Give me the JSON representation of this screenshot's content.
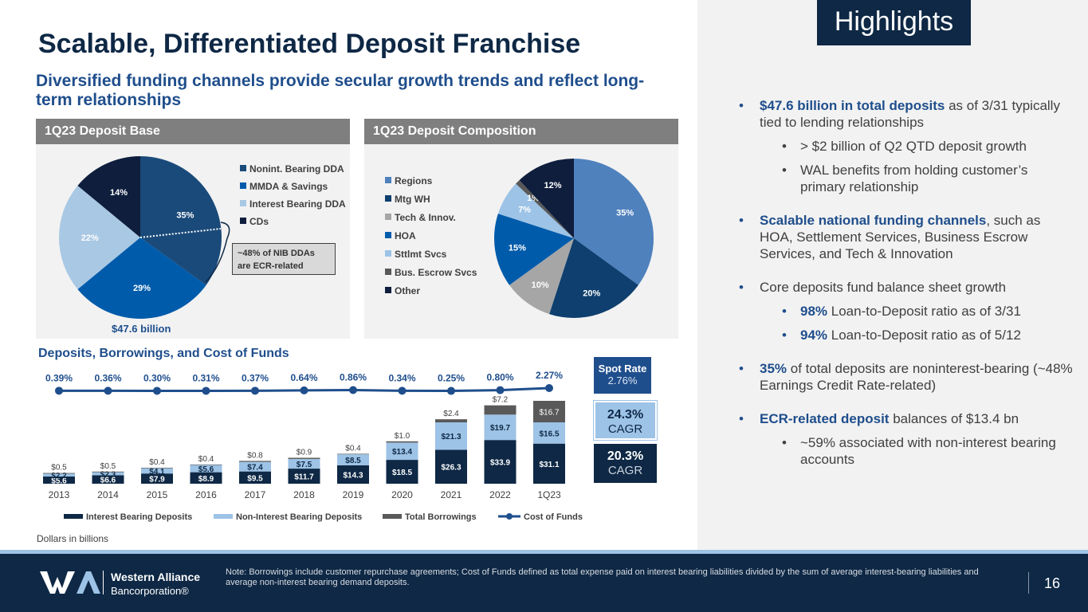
{
  "header": {
    "title": "Scalable, Differentiated Deposit Franchise",
    "subtitle": "Diversified funding channels provide secular growth trends and reflect long-term relationships",
    "highlights_label": "Highlights"
  },
  "colors": {
    "navy": "#0e2845",
    "blue": "#1f4e8c",
    "mid_blue": "#005bab",
    "light_blue": "#9dc3e6",
    "steel_blue": "#4f81bd",
    "gray": "#a6a6a6",
    "dark_gray": "#595959"
  },
  "chart_data": [
    {
      "type": "pie",
      "title": "1Q23 Deposit Base",
      "slices": [
        {
          "label": "Nonint. Bearing DDA",
          "value": 35,
          "display": "35%",
          "color": "#1a4a7a"
        },
        {
          "label": "MMDA & Savings",
          "value": 29,
          "display": "29%",
          "color": "#005bab"
        },
        {
          "label": "Interest Bearing DDA",
          "value": 22,
          "display": "22%",
          "color": "#a9c8e4"
        },
        {
          "label": "CDs",
          "value": 14,
          "display": "14%",
          "color": "#0e1e3c"
        }
      ],
      "callout": "~48% of NIB DDAs are ECR-related",
      "total_label": "$47.6 billion",
      "legend_position": "right"
    },
    {
      "type": "pie",
      "title": "1Q23 Deposit Composition",
      "slices": [
        {
          "label": "Regions",
          "value": 35,
          "display": "35%",
          "color": "#4f81bd"
        },
        {
          "label": "Mtg WH",
          "value": 20,
          "display": "20%",
          "color": "#0e3f6e"
        },
        {
          "label": "Tech & Innov.",
          "value": 10,
          "display": "10%",
          "color": "#a6a6a6"
        },
        {
          "label": "HOA",
          "value": 15,
          "display": "15%",
          "color": "#005bab"
        },
        {
          "label": "Sttlmt Svcs",
          "value": 7,
          "display": "7%",
          "color": "#9dc3e6"
        },
        {
          "label": "Bus. Escrow Svcs",
          "value": 1,
          "display": "1%",
          "color": "#595959"
        },
        {
          "label": "Other",
          "value": 12,
          "display": "12%",
          "color": "#0e1e3c"
        }
      ],
      "legend_position": "left"
    },
    {
      "type": "bar",
      "title": "Deposits, Borrowings, and Cost of Funds",
      "stacked": true,
      "categories": [
        "2013",
        "2014",
        "2015",
        "2016",
        "2017",
        "2018",
        "2019",
        "2020",
        "2021",
        "2022",
        "1Q23"
      ],
      "series": [
        {
          "name": "Interest Bearing Deposits",
          "color": "#0e2845",
          "values": [
            5.6,
            6.6,
            7.9,
            8.9,
            9.5,
            11.7,
            14.3,
            18.5,
            26.3,
            33.9,
            31.1
          ],
          "labels": [
            "$5.6",
            "$6.6",
            "$7.9",
            "$8.9",
            "$9.5",
            "$11.7",
            "$14.3",
            "$18.5",
            "$26.3",
            "$33.9",
            "$31.1"
          ]
        },
        {
          "name": "Non-Interest Bearing Deposits",
          "color": "#9dc3e6",
          "values": [
            2.2,
            2.3,
            4.1,
            5.6,
            7.4,
            7.5,
            8.5,
            13.4,
            21.3,
            19.7,
            16.5
          ],
          "labels": [
            "$2.2",
            "$2.3",
            "$4.1",
            "$5.6",
            "$7.4",
            "$7.5",
            "$8.5",
            "$13.4",
            "$21.3",
            "$19.7",
            "$16.5"
          ]
        },
        {
          "name": "Total Borrowings",
          "color": "#595959",
          "values": [
            0.5,
            0.5,
            0.4,
            0.4,
            0.8,
            0.9,
            0.4,
            1.0,
            2.4,
            7.2,
            16.7
          ],
          "labels": [
            "$0.5",
            "$0.5",
            "$0.4",
            "$0.4",
            "$0.8",
            "$0.9",
            "$0.4",
            "$1.0",
            "$2.4",
            "$7.2",
            "$16.7"
          ]
        }
      ],
      "line_series": {
        "name": "Cost of Funds",
        "color": "#1f4e8c",
        "values": [
          0.39,
          0.36,
          0.3,
          0.31,
          0.37,
          0.64,
          0.86,
          0.34,
          0.25,
          0.8,
          2.27
        ],
        "labels": [
          "0.39%",
          "0.36%",
          "0.30%",
          "0.31%",
          "0.37%",
          "0.64%",
          "0.86%",
          "0.34%",
          "0.25%",
          "0.80%",
          "2.27%"
        ]
      },
      "ylabel": "",
      "xlabel": "",
      "legend_position": "bottom",
      "grid": false
    }
  ],
  "side_boxes": {
    "spot_rate_title": "Spot Rate",
    "spot_rate_value": "2.76%",
    "cagr_top_value": "24.3%",
    "cagr_top_label": "CAGR",
    "cagr_bottom_value": "20.3%",
    "cagr_bottom_label": "CAGR"
  },
  "notes": {
    "dollars": "Dollars in billions"
  },
  "bullets": {
    "b1_strong": "$47.6 billion in total deposits",
    "b1_rest": " as of 3/31 typically tied to lending relationships",
    "b1_sub1": "> $2 billion of Q2 QTD deposit growth",
    "b1_sub2": "WAL benefits from holding customer’s primary relationship",
    "b2_strong": "Scalable national funding channels",
    "b2_rest": ", such as HOA, Settlement Services, Business Escrow Services, and Tech & Innovation",
    "b3": "Core deposits fund balance sheet growth",
    "b3_sub1_strong": "98%",
    "b3_sub1_rest": " Loan-to-Deposit ratio as of 3/31",
    "b3_sub2_strong": "94%",
    "b3_sub2_rest": " Loan-to-Deposit ratio as of 5/12",
    "b4_strong": "35%",
    "b4_rest": " of total deposits are noninterest-bearing (~48% Earnings Credit Rate-related)",
    "b5_strong": "ECR-related deposit",
    "b5_rest": " balances of $13.4 bn",
    "b5_sub1": "~59% associated with non-interest bearing accounts"
  },
  "footer": {
    "logo_line1": "Western Alliance",
    "logo_line2": "Bancorporation®",
    "note": "Note: Borrowings include customer repurchase agreements; Cost of Funds defined as total expense paid on interest bearing liabilities divided by the sum of average interest-bearing liabilities and average non-interest bearing demand deposits.",
    "page_number": "16"
  }
}
